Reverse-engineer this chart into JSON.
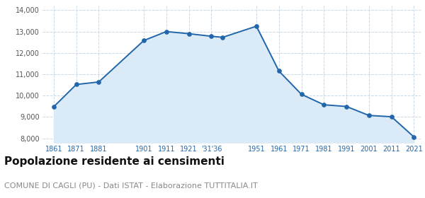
{
  "years": [
    1861,
    1871,
    1881,
    1901,
    1911,
    1921,
    1931,
    1936,
    1951,
    1961,
    1971,
    1981,
    1991,
    2001,
    2011,
    2021
  ],
  "population": [
    9480,
    10520,
    10640,
    12580,
    13000,
    12900,
    12780,
    12730,
    13250,
    11150,
    10060,
    9570,
    9490,
    9070,
    9010,
    8060
  ],
  "line_color": "#2266aa",
  "fill_color": "#daeaf7",
  "marker_color": "#2266aa",
  "grid_color": "#c8d8e8",
  "background_color": "#ffffff",
  "title": "Popolazione residente ai censimenti",
  "subtitle": "COMUNE DI CAGLI (PU) - Dati ISTAT - Elaborazione TUTTITALIA.IT",
  "title_fontsize": 11,
  "subtitle_fontsize": 8,
  "ylim": [
    7800,
    14200
  ],
  "yticks": [
    8000,
    9000,
    10000,
    11000,
    12000,
    13000,
    14000
  ],
  "tick_positions": [
    1861,
    1871,
    1881,
    1901,
    1911,
    1921,
    1931,
    1951,
    1961,
    1971,
    1981,
    1991,
    2001,
    2011,
    2021
  ],
  "tick_labels": [
    "1861",
    "1871",
    "1881",
    "1901",
    "1911",
    "1921",
    "'31'36",
    "1951",
    "1961",
    "1971",
    "1981",
    "1991",
    "2001",
    "2011",
    "2021"
  ]
}
